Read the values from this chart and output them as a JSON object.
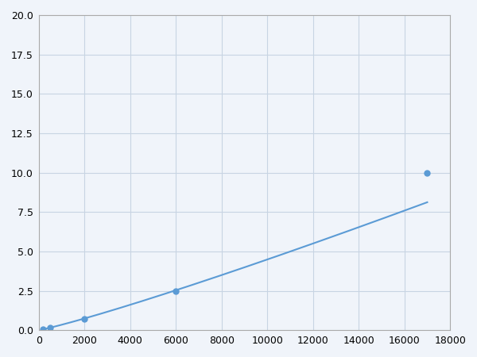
{
  "x": [
    200,
    500,
    1000,
    2000,
    6000,
    17000
  ],
  "y": [
    0.08,
    0.15,
    0.22,
    0.7,
    2.5,
    10.0
  ],
  "line_color": "#5b9bd5",
  "marker_x": [
    200,
    500,
    2000,
    6000,
    17000
  ],
  "marker_y": [
    0.08,
    0.15,
    0.7,
    2.5,
    10.0
  ],
  "marker_color": "#5b9bd5",
  "marker_size": 5,
  "xlim": [
    0,
    18000
  ],
  "ylim": [
    0,
    20
  ],
  "xticks": [
    0,
    2000,
    4000,
    6000,
    8000,
    10000,
    12000,
    14000,
    16000,
    18000
  ],
  "yticks": [
    0.0,
    2.5,
    5.0,
    7.5,
    10.0,
    12.5,
    15.0,
    17.5,
    20.0
  ],
  "grid_color": "#c8d4e3",
  "bg_color": "#f0f4fa",
  "fig_bg_color": "#f0f4fa",
  "spine_color": "#aaaaaa"
}
